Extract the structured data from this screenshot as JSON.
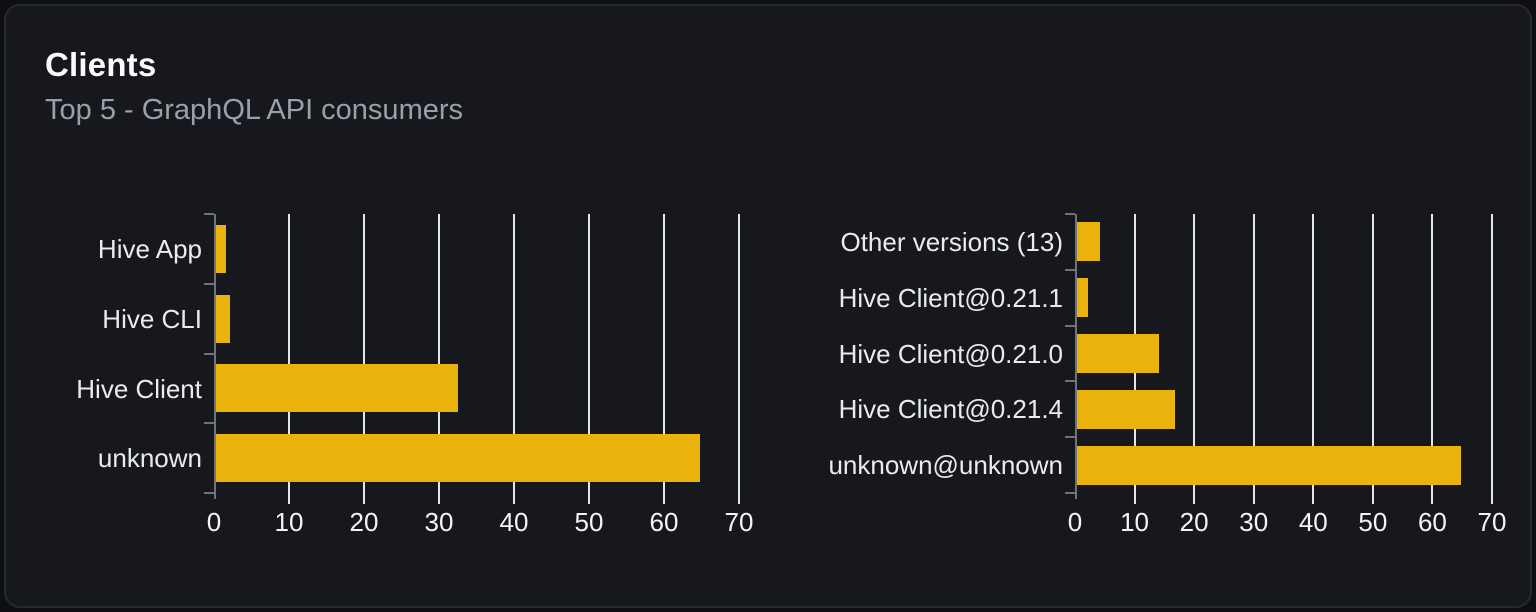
{
  "card": {
    "title": "Clients",
    "subtitle": "Top 5 - GraphQL API consumers"
  },
  "colors": {
    "page_background": "#0e0f12",
    "card_background": "#16181d",
    "card_border": "#26292f",
    "bar": "#eab30b",
    "gridline": "#e3e6ec",
    "axis": "#6e727a",
    "title_text": "#fafafa",
    "subtitle_text": "#9aa0a8",
    "category_label_text": "#e9ebee",
    "tick_label_text": "#f3f4f6"
  },
  "chart_data": [
    {
      "type": "bar",
      "orientation": "horizontal",
      "categories": [
        "Hive App",
        "Hive CLI",
        "Hive Client",
        "unknown"
      ],
      "values": [
        1.3,
        1.9,
        32.2,
        64.5
      ],
      "x_ticks": [
        0,
        10,
        20,
        30,
        40,
        50,
        60,
        70
      ],
      "xlim": [
        0,
        70
      ],
      "grid": true,
      "legend": false
    },
    {
      "type": "bar",
      "orientation": "horizontal",
      "categories": [
        "Other versions (13)",
        "Hive Client@0.21.1",
        "Hive Client@0.21.0",
        "Hive Client@0.21.4",
        "unknown@unknown"
      ],
      "values": [
        3.9,
        1.9,
        13.7,
        16.4,
        64.5
      ],
      "x_ticks": [
        0,
        10,
        20,
        30,
        40,
        50,
        60,
        70
      ],
      "xlim": [
        0,
        70
      ],
      "grid": true,
      "legend": false
    }
  ]
}
